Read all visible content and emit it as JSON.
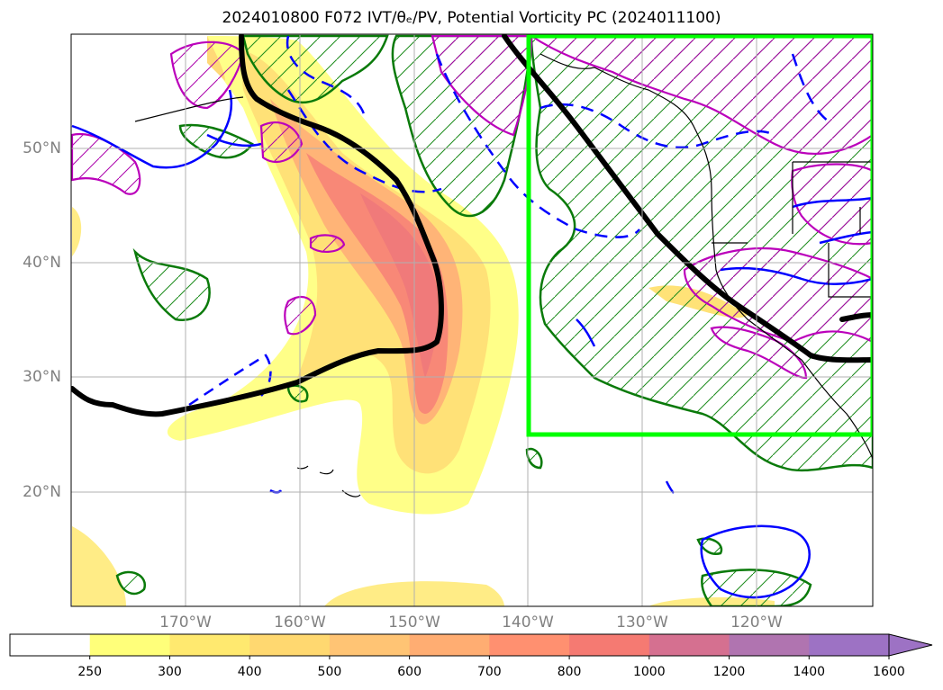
{
  "title": "2024010800 F072 IVT/θₑ/PV, Potential Vorticity PC (2024011100)",
  "lat_labels": [
    "50°N",
    "40°N",
    "30°N",
    "20°N"
  ],
  "lon_labels": [
    "170°W",
    "160°W",
    "150°W",
    "140°W",
    "130°W",
    "120°W"
  ],
  "colorbar": {
    "ticks": [
      "250",
      "300",
      "400",
      "500",
      "600",
      "700",
      "800",
      "1000",
      "1200",
      "1400",
      "1600"
    ],
    "colors": [
      "#ffffff",
      "#ffff7a",
      "#ffe96f",
      "#ffd870",
      "#ffc474",
      "#ffad72",
      "#ff9070",
      "#f57a72",
      "#d57090",
      "#b074b0",
      "#9d72c4"
    ]
  },
  "colors": {
    "ivt_low": "#ffff80",
    "ivt_high": "#f06e6e",
    "pv_positive": "#008000",
    "pv_negative": "#0000ff",
    "pc_contour": "#bb00bb",
    "theta_e_line": "#000000",
    "target_box": "#00ff00",
    "coastline": "#000000",
    "grid": "#b0b0b0"
  }
}
